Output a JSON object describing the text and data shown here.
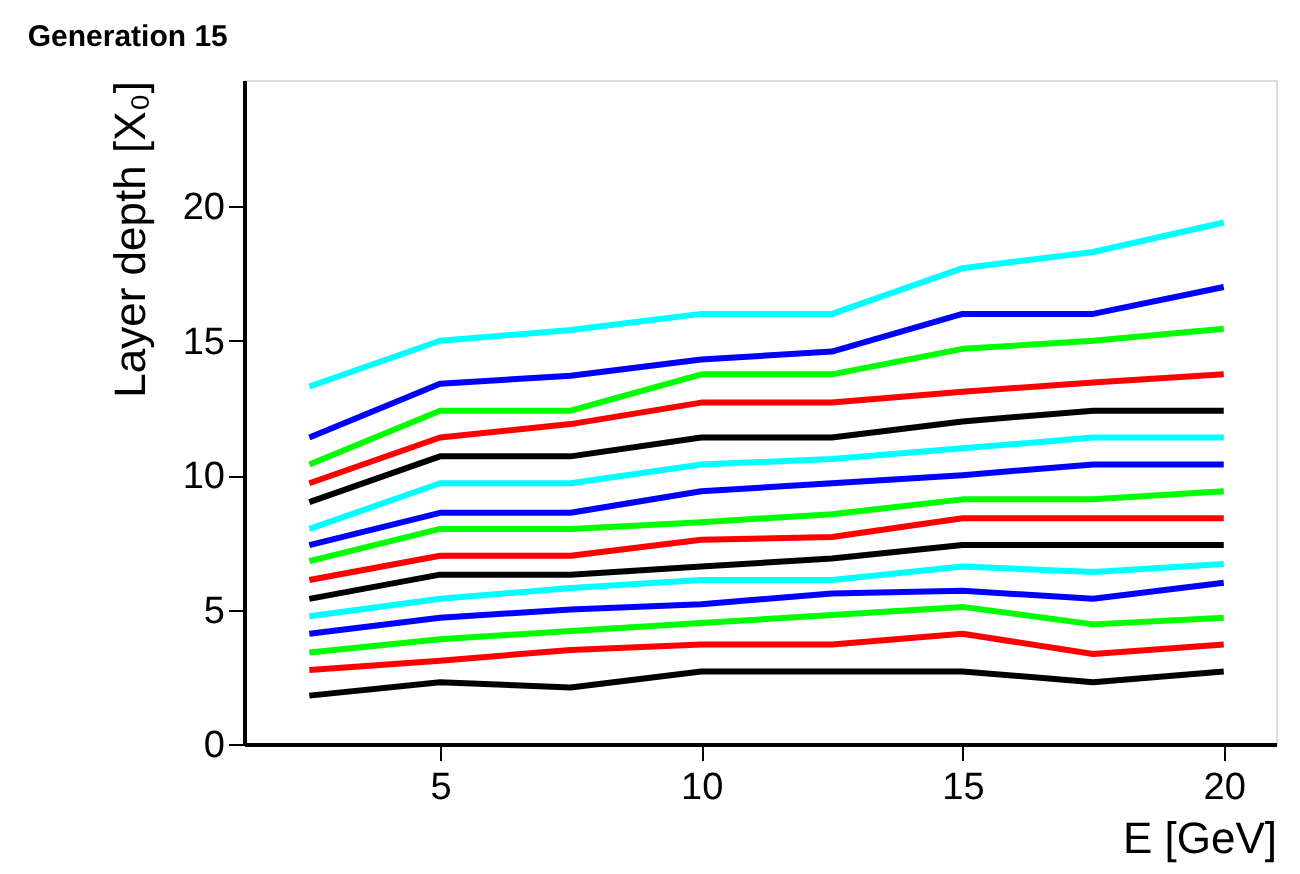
{
  "chart_data": {
    "type": "line",
    "title": "Generation 15",
    "xlabel": "E  [GeV]",
    "ylabel": "Layer depth [X₀]",
    "x": [
      2.5,
      5,
      7.5,
      10,
      12.5,
      15,
      17.5,
      20
    ],
    "xlim": [
      1.25,
      21
    ],
    "xticks": [
      5,
      10,
      15,
      20
    ],
    "ylim": [
      0,
      24.7
    ],
    "yticks": [
      0,
      5,
      10,
      15,
      20
    ],
    "grid": false,
    "legend": false,
    "marker": "none",
    "line_style": "solid",
    "series": [
      {
        "color": "#000000",
        "values": [
          1.8,
          2.3,
          2.1,
          2.7,
          2.7,
          2.7,
          2.3,
          2.7
        ]
      },
      {
        "color": "#ff0000",
        "values": [
          2.75,
          3.1,
          3.5,
          3.7,
          3.7,
          4.1,
          3.35,
          3.7
        ]
      },
      {
        "color": "#00ff00",
        "values": [
          3.4,
          3.9,
          4.2,
          4.5,
          4.8,
          5.1,
          4.45,
          4.7
        ]
      },
      {
        "color": "#0000ff",
        "values": [
          4.1,
          4.7,
          5.0,
          5.2,
          5.6,
          5.7,
          5.4,
          6.0
        ]
      },
      {
        "color": "#00ffff",
        "values": [
          4.75,
          5.4,
          5.8,
          6.1,
          6.1,
          6.6,
          6.4,
          6.7
        ]
      },
      {
        "color": "#000000",
        "values": [
          5.4,
          6.3,
          6.3,
          6.6,
          6.9,
          7.4,
          7.4,
          7.4
        ]
      },
      {
        "color": "#ff0000",
        "values": [
          6.1,
          7.0,
          7.0,
          7.6,
          7.7,
          8.4,
          8.4,
          8.4
        ]
      },
      {
        "color": "#00ff00",
        "values": [
          6.8,
          8.0,
          8.0,
          8.25,
          8.55,
          9.1,
          9.1,
          9.4
        ]
      },
      {
        "color": "#0000ff",
        "values": [
          7.4,
          8.6,
          8.6,
          9.4,
          9.7,
          10.0,
          10.4,
          10.4
        ]
      },
      {
        "color": "#00ffff",
        "values": [
          8.0,
          9.7,
          9.7,
          10.4,
          10.6,
          11.0,
          11.4,
          11.4
        ]
      },
      {
        "color": "#000000",
        "values": [
          9.0,
          10.7,
          10.7,
          11.4,
          11.4,
          12.0,
          12.4,
          12.4
        ]
      },
      {
        "color": "#ff0000",
        "values": [
          9.7,
          11.4,
          11.9,
          12.7,
          12.7,
          13.1,
          13.45,
          13.75
        ]
      },
      {
        "color": "#00ff00",
        "values": [
          10.4,
          12.4,
          12.4,
          13.75,
          13.75,
          14.7,
          15.0,
          15.45
        ]
      },
      {
        "color": "#0000ff",
        "values": [
          11.4,
          13.4,
          13.7,
          14.3,
          14.6,
          16.0,
          16.0,
          17.0
        ]
      },
      {
        "color": "#00ffff",
        "values": [
          13.3,
          15.0,
          15.4,
          16.0,
          16.0,
          17.7,
          18.3,
          19.4
        ]
      }
    ]
  }
}
